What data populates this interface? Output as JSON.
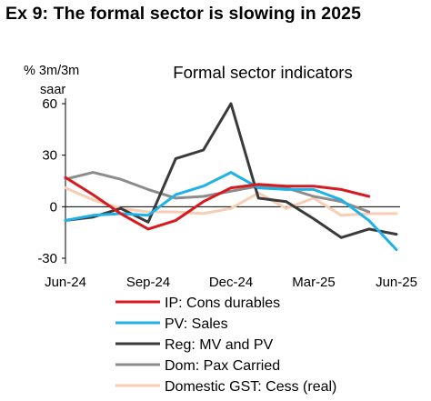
{
  "exhibit_heading": "Ex 9: The formal sector is slowing in 2025",
  "chart_data": {
    "type": "line",
    "title": "Formal sector indicators",
    "ylabel": "% 3m/3m saar",
    "ylabel_line1": "% 3m/3m",
    "ylabel_line2": "saar",
    "xlabel": "",
    "ylim": [
      -30,
      60
    ],
    "yticks": [
      -30,
      0,
      30,
      60
    ],
    "x": [
      "Jun-24",
      "Jul-24",
      "Aug-24",
      "Sep-24",
      "Oct-24",
      "Nov-24",
      "Dec-24",
      "Jan-25",
      "Feb-25",
      "Mar-25",
      "Apr-25",
      "May-25",
      "Jun-25"
    ],
    "xtick_labels": [
      "Jun-24",
      "Sep-24",
      "Dec-24",
      "Mar-25",
      "Jun-25"
    ],
    "grid": false,
    "legend_position": "bottom",
    "series": [
      {
        "name": "IP: Cons durables",
        "color": "#d71920",
        "values": [
          17,
          7,
          -4,
          -13,
          -8,
          3,
          11,
          13,
          12,
          12,
          10,
          6,
          null
        ]
      },
      {
        "name": "PV: Sales",
        "color": "#1fb2e6",
        "values": [
          -8,
          -5,
          -4,
          -5,
          7,
          12,
          20,
          11,
          10,
          10,
          4,
          -8,
          -25
        ]
      },
      {
        "name": "Reg: MV and PV",
        "color": "#3a3a3a",
        "values": [
          -8,
          -6,
          -1,
          -9,
          28,
          33,
          60,
          5,
          3,
          -7,
          -18,
          -13,
          -16
        ]
      },
      {
        "name": "Dom: Pax Carried",
        "color": "#8c8c8c",
        "values": [
          16,
          20,
          16,
          10,
          5,
          6,
          9,
          12,
          11,
          6,
          3,
          -3,
          null
        ]
      },
      {
        "name": "Domestic GST: Cess (real)",
        "color": "#f7cdb3",
        "values": [
          11,
          4,
          -1,
          -3,
          -3,
          -4,
          -1,
          8,
          -1,
          5,
          -5,
          -4,
          -4
        ]
      }
    ]
  }
}
